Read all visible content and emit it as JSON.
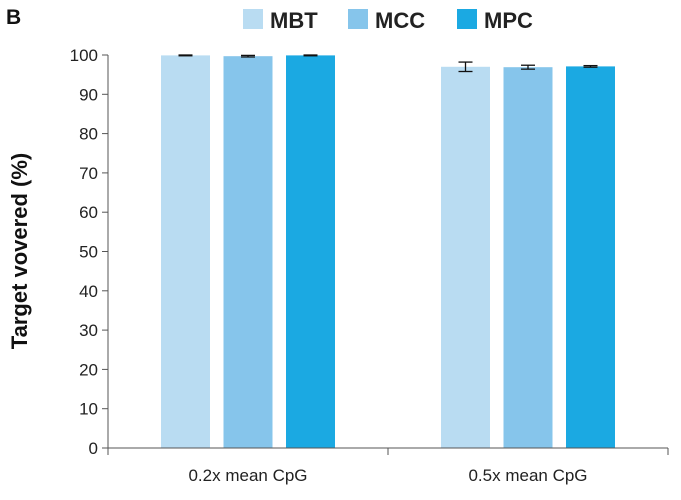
{
  "panel_label": "B",
  "chart_data": {
    "type": "bar",
    "title": "",
    "xlabel": "",
    "ylabel": "Target vovered (%)",
    "ylim": [
      0,
      100
    ],
    "yticks": [
      0,
      10,
      20,
      30,
      40,
      50,
      60,
      70,
      80,
      90,
      100
    ],
    "categories": [
      "0.2x mean CpG",
      "0.5x mean CpG"
    ],
    "legend_position": "top",
    "series": [
      {
        "name": "MBT",
        "color": "#b9dcf2",
        "values": [
          99.9,
          97.0
        ],
        "errors": [
          0.1,
          1.2
        ]
      },
      {
        "name": "MCC",
        "color": "#86c5eb",
        "values": [
          99.7,
          96.9
        ],
        "errors": [
          0.2,
          0.5
        ]
      },
      {
        "name": "MPC",
        "color": "#1ba9e2",
        "values": [
          99.9,
          97.1
        ],
        "errors": [
          0.1,
          0.2
        ]
      }
    ]
  }
}
